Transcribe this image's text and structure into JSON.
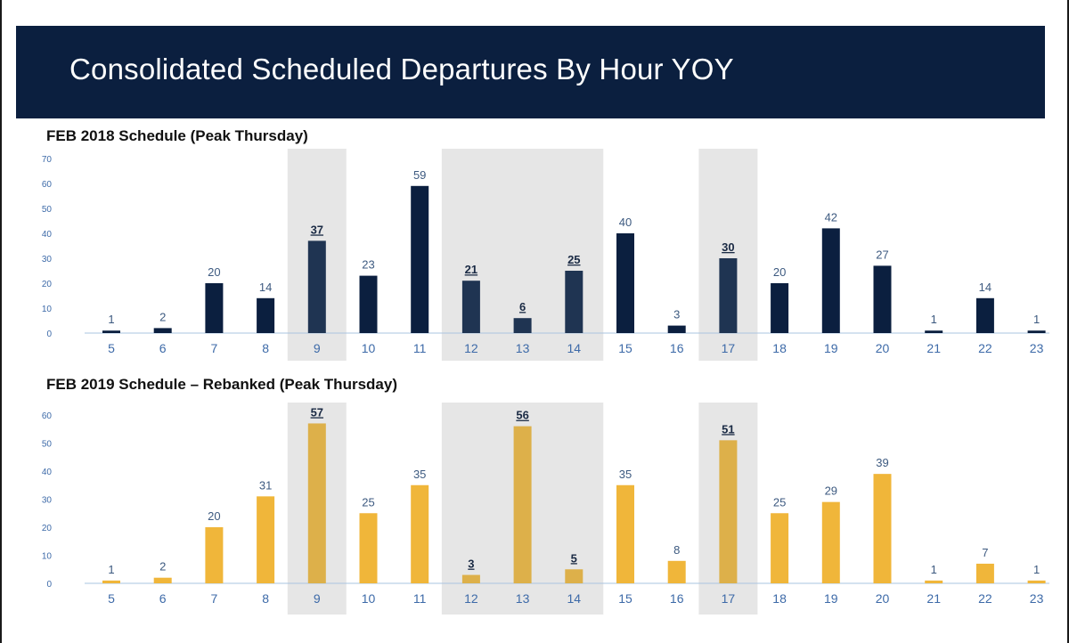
{
  "header": {
    "title": "Consolidated Scheduled Departures By Hour YOY"
  },
  "chart_data": [
    {
      "type": "bar",
      "title": "FEB 2018 Schedule (Peak Thursday)",
      "categories": [
        "5",
        "6",
        "7",
        "8",
        "9",
        "10",
        "11",
        "12",
        "13",
        "14",
        "15",
        "16",
        "17",
        "18",
        "19",
        "20",
        "21",
        "22",
        "23"
      ],
      "series": [
        {
          "values": [
            1,
            2,
            20,
            14,
            37,
            23,
            59,
            21,
            6,
            25,
            40,
            3,
            30,
            20,
            42,
            27,
            1,
            14,
            1
          ]
        }
      ],
      "ylim": [
        0,
        70
      ],
      "yticks": [
        0,
        10,
        20,
        30,
        40,
        50,
        60,
        70
      ],
      "peak_hours": [
        "9",
        "12",
        "13",
        "14",
        "17"
      ],
      "highlight_bands": [
        [
          "9",
          "9"
        ],
        [
          "12",
          "14"
        ],
        [
          "17",
          "17"
        ]
      ],
      "colors": {
        "bar": "#0b1f3f",
        "bar_peak": "#1f3452",
        "band": "#e6e6e6",
        "axis": "#aac4e0"
      },
      "grid": false,
      "legend": "none"
    },
    {
      "type": "bar",
      "title": "FEB 2019 Schedule – Rebanked (Peak Thursday)",
      "categories": [
        "5",
        "6",
        "7",
        "8",
        "9",
        "10",
        "11",
        "12",
        "13",
        "14",
        "15",
        "16",
        "17",
        "18",
        "19",
        "20",
        "21",
        "22",
        "23"
      ],
      "series": [
        {
          "values": [
            1,
            2,
            20,
            31,
            57,
            25,
            35,
            3,
            56,
            5,
            35,
            8,
            51,
            25,
            29,
            39,
            1,
            7,
            1
          ]
        }
      ],
      "ylim": [
        0,
        60
      ],
      "yticks": [
        0,
        10,
        20,
        30,
        40,
        50,
        60
      ],
      "peak_hours": [
        "9",
        "12",
        "13",
        "14",
        "17"
      ],
      "highlight_bands": [
        [
          "9",
          "9"
        ],
        [
          "12",
          "14"
        ],
        [
          "17",
          "17"
        ]
      ],
      "colors": {
        "bar": "#f0b63a",
        "bar_peak": "#ddb04a",
        "band": "#e6e6e6",
        "axis": "#aac4e0"
      },
      "grid": false,
      "legend": "none"
    }
  ]
}
